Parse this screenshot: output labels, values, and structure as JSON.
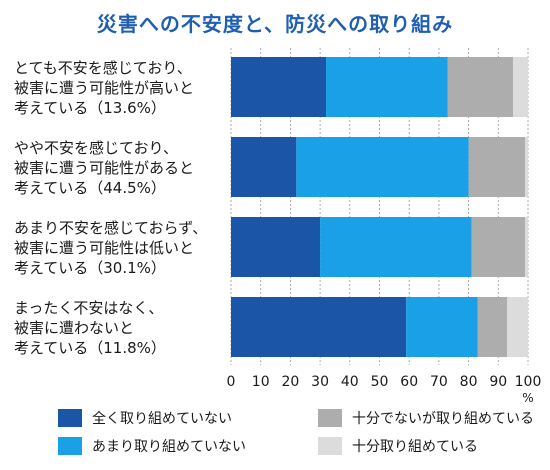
{
  "chart_data": {
    "type": "bar",
    "orientation": "horizontal",
    "stacked": true,
    "title": "災害への不安度と、防災への取り組み",
    "categories": [
      [
        "とても不安を感じており、",
        "被害に遭う可能性が高いと",
        "考えている（13.6%）"
      ],
      [
        "やや不安を感じており、",
        "被害に遭う可能性があると",
        "考えている（44.5%）"
      ],
      [
        "あまり不安を感じておらず、",
        "被害に遭う可能性は低いと",
        "考えている（30.1%）"
      ],
      [
        "まったく不安はなく、",
        "被害に遭わないと",
        "考えている（11.8%）"
      ]
    ],
    "series": [
      {
        "name": "全く取り組めていない",
        "color": "#1a55a8",
        "values": [
          32,
          22,
          30,
          59
        ]
      },
      {
        "name": "あまり取り組めていない",
        "color": "#1aa0e6",
        "values": [
          41,
          58,
          51,
          24
        ]
      },
      {
        "name": "十分でないが取り組めている",
        "color": "#adadad",
        "values": [
          22,
          19,
          18,
          10
        ]
      },
      {
        "name": "十分取り組めている",
        "color": "#dcdcdc",
        "values": [
          5,
          1,
          1,
          7
        ]
      }
    ],
    "x_ticks": [
      "0",
      "10",
      "20",
      "30",
      "40",
      "50",
      "60",
      "70",
      "80",
      "90",
      "100"
    ],
    "x_unit": "%",
    "xlim": [
      0,
      100
    ],
    "grid": true,
    "legend_position": "bottom"
  }
}
